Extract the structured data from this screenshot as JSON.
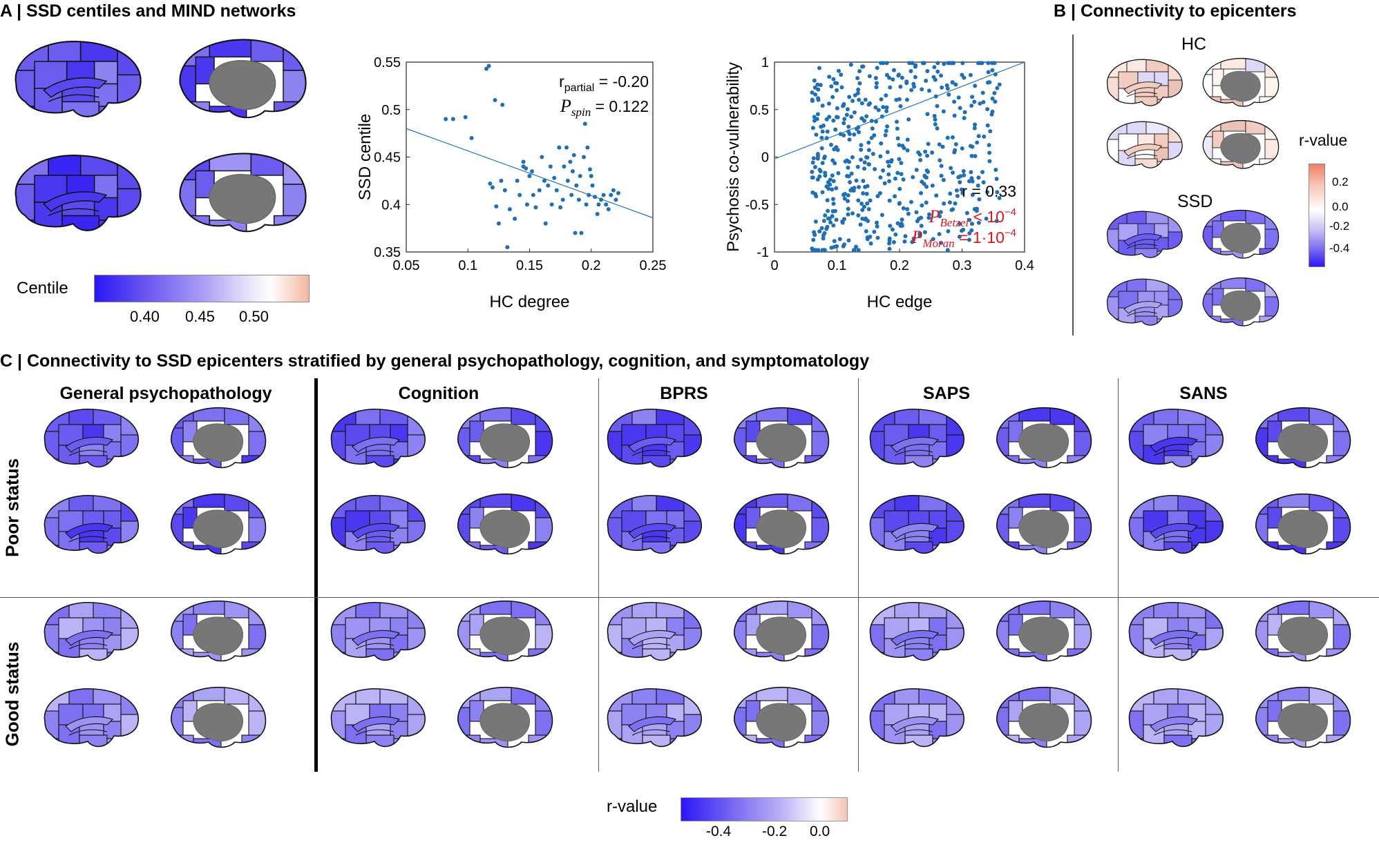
{
  "panelA": {
    "title": "A | SSD centiles and MIND networks",
    "colorbar": {
      "label": "Centile",
      "ticks": [
        "0.40",
        "0.45",
        "0.50"
      ]
    }
  },
  "panelB": {
    "title": "B | Connectivity to epicenters",
    "hc_label": "HC",
    "ssd_label": "SSD",
    "colorbar": {
      "label": "r-value",
      "ticks": [
        "0.2",
        "0.0",
        "-0.2",
        "-0.4"
      ]
    }
  },
  "panelC": {
    "title": "C | Connectivity to SSD epicenters stratified by general psychopathology, cognition, and symptomatology",
    "columns": [
      "General psychopathology",
      "Cognition",
      "BPRS",
      "SAPS",
      "SANS"
    ],
    "rows": [
      "Poor status",
      "Good status"
    ],
    "colorbar": {
      "label": "r-value",
      "ticks": [
        "-0.4",
        "-0.2",
        "0.0"
      ]
    }
  },
  "chart_data": [
    {
      "type": "scatter",
      "title": "",
      "xlabel": "HC degree",
      "ylabel": "SSD centile",
      "xlim": [
        0.05,
        0.25
      ],
      "ylim": [
        0.35,
        0.55
      ],
      "xticks": [
        "0.05",
        "0.1",
        "0.15",
        "0.2",
        "0.25"
      ],
      "yticks": [
        "0.35",
        "0.4",
        "0.45",
        "0.5",
        "0.55"
      ],
      "annotation": {
        "r_text": "r",
        "r_sub": "partial",
        "r_value": " = -0.20",
        "p_text": "P",
        "p_sub": "spin",
        "p_value": " = 0.122"
      },
      "fit_line": {
        "x": [
          0.05,
          0.25
        ],
        "y": [
          0.48,
          0.386
        ]
      },
      "points": [
        [
          0.082,
          0.49
        ],
        [
          0.088,
          0.49
        ],
        [
          0.098,
          0.492
        ],
        [
          0.103,
          0.47
        ],
        [
          0.115,
          0.543
        ],
        [
          0.117,
          0.546
        ],
        [
          0.122,
          0.51
        ],
        [
          0.128,
          0.505
        ],
        [
          0.118,
          0.422
        ],
        [
          0.12,
          0.418
        ],
        [
          0.123,
          0.398
        ],
        [
          0.125,
          0.38
        ],
        [
          0.127,
          0.425
        ],
        [
          0.13,
          0.415
        ],
        [
          0.132,
          0.355
        ],
        [
          0.134,
          0.395
        ],
        [
          0.14,
          0.425
        ],
        [
          0.142,
          0.41
        ],
        [
          0.145,
          0.44
        ],
        [
          0.147,
          0.438
        ],
        [
          0.148,
          0.4
        ],
        [
          0.15,
          0.43
        ],
        [
          0.152,
          0.435
        ],
        [
          0.153,
          0.41
        ],
        [
          0.155,
          0.397
        ],
        [
          0.158,
          0.415
        ],
        [
          0.16,
          0.45
        ],
        [
          0.162,
          0.425
        ],
        [
          0.165,
          0.42
        ],
        [
          0.167,
          0.44
        ],
        [
          0.168,
          0.4
        ],
        [
          0.17,
          0.428
        ],
        [
          0.172,
          0.415
        ],
        [
          0.174,
          0.46
        ],
        [
          0.175,
          0.397
        ],
        [
          0.177,
          0.405
        ],
        [
          0.178,
          0.44
        ],
        [
          0.18,
          0.46
        ],
        [
          0.181,
          0.425
        ],
        [
          0.183,
          0.445
        ],
        [
          0.184,
          0.41
        ],
        [
          0.185,
          0.435
        ],
        [
          0.187,
          0.37
        ],
        [
          0.188,
          0.42
        ],
        [
          0.19,
          0.405
        ],
        [
          0.191,
          0.43
        ],
        [
          0.192,
          0.37
        ],
        [
          0.194,
          0.45
        ],
        [
          0.195,
          0.485
        ],
        [
          0.196,
          0.4
        ],
        [
          0.197,
          0.46
        ],
        [
          0.198,
          0.41
        ],
        [
          0.2,
          0.43
        ],
        [
          0.201,
          0.42
        ],
        [
          0.203,
          0.408
        ],
        [
          0.205,
          0.39
        ],
        [
          0.206,
          0.4
        ],
        [
          0.208,
          0.405
        ],
        [
          0.21,
          0.41
        ],
        [
          0.212,
          0.4
        ],
        [
          0.214,
          0.395
        ],
        [
          0.216,
          0.41
        ],
        [
          0.218,
          0.415
        ],
        [
          0.22,
          0.405
        ],
        [
          0.222,
          0.412
        ],
        [
          0.145,
          0.445
        ],
        [
          0.138,
          0.385
        ],
        [
          0.163,
          0.38
        ],
        [
          0.186,
          0.452
        ],
        [
          0.199,
          0.437
        ]
      ]
    },
    {
      "type": "scatter",
      "title": "",
      "xlabel": "HC edge",
      "ylabel": "Psychosis co-vulnerability",
      "xlim": [
        0,
        0.4
      ],
      "ylim": [
        -1,
        1
      ],
      "xticks": [
        "0",
        "0.1",
        "0.2",
        "0.3",
        "0.4"
      ],
      "yticks": [
        "-1",
        "-0.5",
        "0",
        "0.5",
        "1"
      ],
      "annotation": {
        "r_line": "r = 0.33",
        "betzel_sub": "Betzel",
        "betzel_value": " < 10",
        "betzel_exp": "−4",
        "moran_sub": "Moran",
        "moran_value": " = 1·10",
        "moran_exp": "−4"
      },
      "fit_line": {
        "x": [
          0,
          0.4
        ],
        "y": [
          -0.02,
          1.0
        ]
      }
    }
  ]
}
